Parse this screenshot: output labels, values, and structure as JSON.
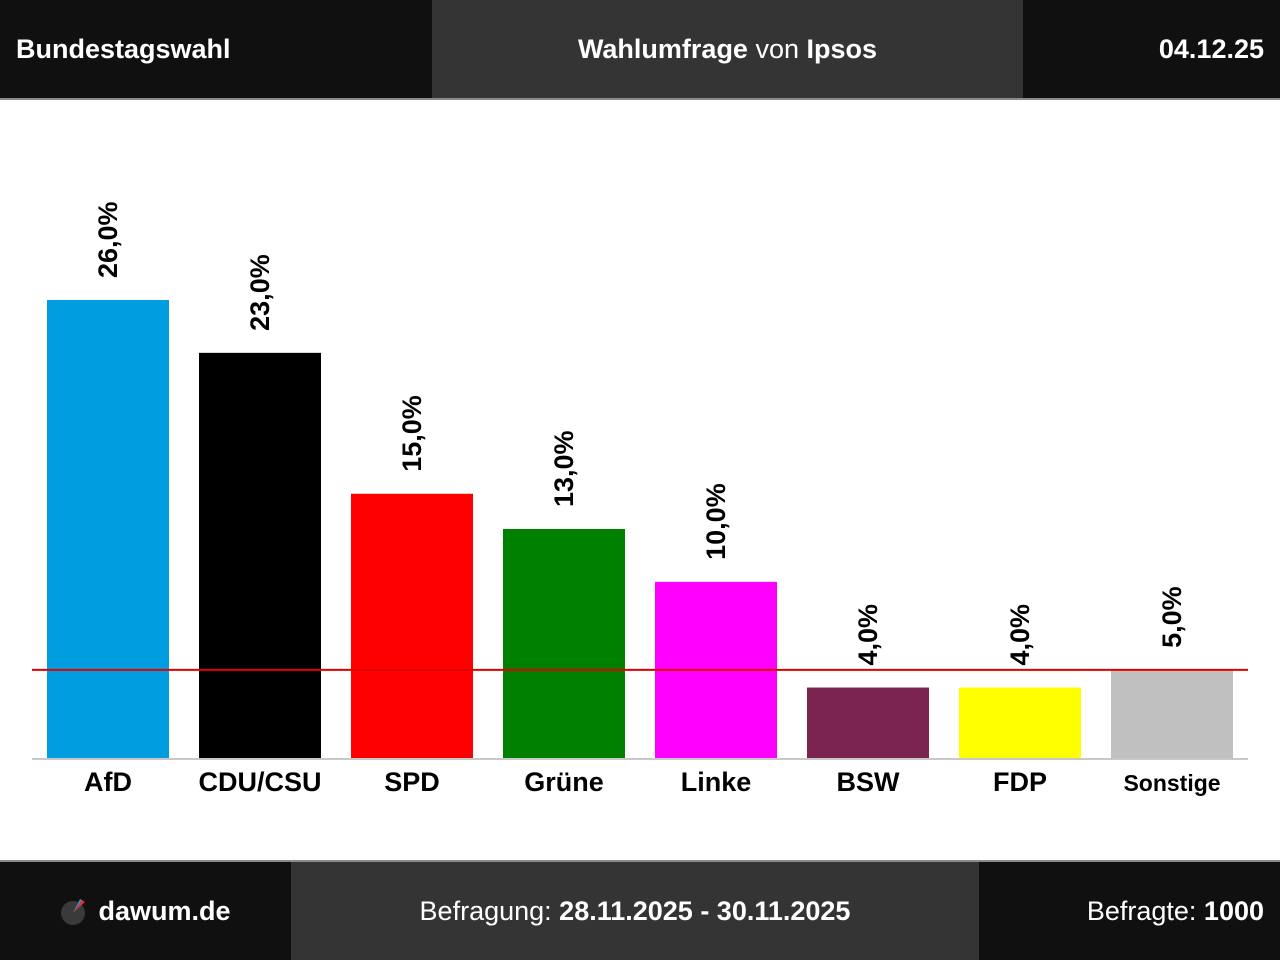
{
  "header": {
    "election": "Bundestagswahl",
    "poll_label": "Wahlumfrage",
    "von": "von",
    "institute": "Ipsos",
    "date": "04.12.25"
  },
  "footer": {
    "site": "dawum.de",
    "befragung_label": "Befragung:",
    "befragung_period": "28.11.2025 - 30.11.2025",
    "befragte_label": "Befragte:",
    "befragte_count": "1000"
  },
  "chart_data": {
    "type": "bar",
    "categories": [
      "AfD",
      "CDU/CSU",
      "SPD",
      "Grüne",
      "Linke",
      "BSW",
      "FDP",
      "Sonstige"
    ],
    "values": [
      26.0,
      23.0,
      15.0,
      13.0,
      10.0,
      4.0,
      4.0,
      5.0
    ],
    "value_labels": [
      "26,0%",
      "23,0%",
      "15,0%",
      "13,0%",
      "10,0%",
      "4,0%",
      "4,0%",
      "5,0%"
    ],
    "colors": [
      "#009ee0",
      "#000000",
      "#ff0000",
      "#008000",
      "#ff00ff",
      "#7b2450",
      "#ffff00",
      "#c0c0c0"
    ],
    "threshold": 5,
    "threshold_color": "#e00000",
    "ylim": [
      0,
      26
    ],
    "grid": false
  }
}
